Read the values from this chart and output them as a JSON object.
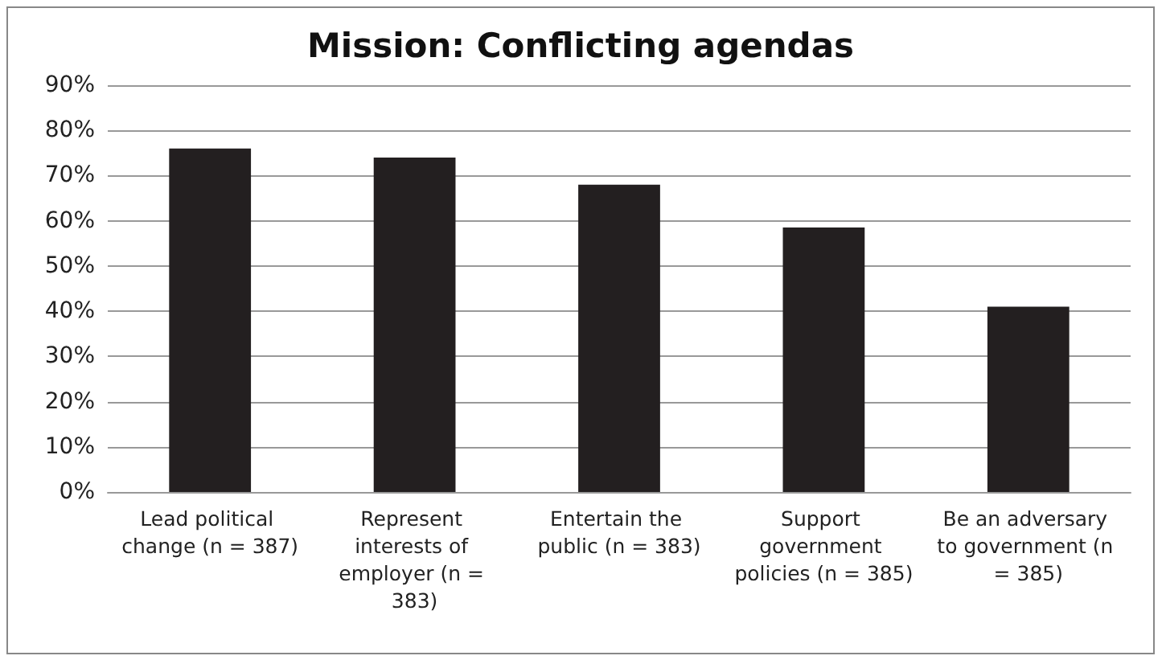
{
  "chart_data": {
    "type": "bar",
    "title": "Mission: Conflicting agendas",
    "categories": [
      "Lead political change (n = 387)",
      "Represent interests of employer (n = 383)",
      "Entertain the public (n = 383)",
      "Support government policies (n = 385)",
      "Be an adversary to government (n = 385)"
    ],
    "values": [
      76,
      74,
      68,
      58.5,
      41
    ],
    "color": "#231f20",
    "ylim": [
      0,
      90
    ],
    "yticks": [
      {
        "value": 0,
        "label": "0%"
      },
      {
        "value": 10,
        "label": "10%"
      },
      {
        "value": 20,
        "label": "20%"
      },
      {
        "value": 30,
        "label": "30%"
      },
      {
        "value": 40,
        "label": "40%"
      },
      {
        "value": 50,
        "label": "50%"
      },
      {
        "value": 60,
        "label": "60%"
      },
      {
        "value": 70,
        "label": "70%"
      },
      {
        "value": 80,
        "label": "80%"
      },
      {
        "value": 90,
        "label": "90%"
      }
    ],
    "grid": "y"
  }
}
